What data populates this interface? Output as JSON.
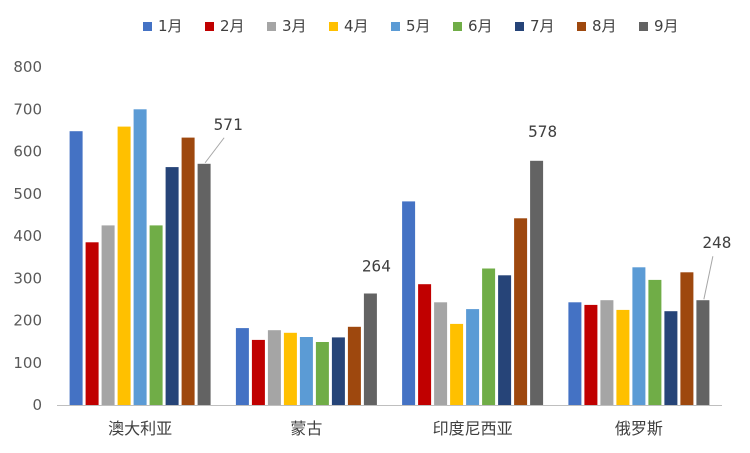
{
  "chart_data": {
    "type": "bar",
    "title": "",
    "xlabel": "",
    "ylabel": "",
    "categories": [
      "澳大利亚",
      "蒙古",
      "印度尼西亚",
      "俄罗斯"
    ],
    "ylim": [
      0,
      800
    ],
    "yticks": [
      0,
      100,
      200,
      300,
      400,
      500,
      600,
      700,
      800
    ],
    "grid": false,
    "legend_position": "top",
    "series": [
      {
        "name": "1月",
        "color": "#4472C4",
        "values": [
          648,
          182,
          482,
          243
        ]
      },
      {
        "name": "2月",
        "color": "#C00000",
        "values": [
          385,
          154,
          286,
          237
        ]
      },
      {
        "name": "3月",
        "color": "#A5A5A5",
        "values": [
          425,
          177,
          243,
          248
        ]
      },
      {
        "name": "4月",
        "color": "#FFC000",
        "values": [
          659,
          171,
          192,
          225
        ]
      },
      {
        "name": "5月",
        "color": "#5B9BD5",
        "values": [
          700,
          161,
          227,
          326
        ]
      },
      {
        "name": "6月",
        "color": "#70AD47",
        "values": [
          425,
          149,
          323,
          296
        ]
      },
      {
        "name": "7月",
        "color": "#264478",
        "values": [
          563,
          160,
          307,
          222
        ]
      },
      {
        "name": "8月",
        "color": "#9E480E",
        "values": [
          633,
          185,
          442,
          314
        ]
      },
      {
        "name": "9月",
        "color": "#636363",
        "values": [
          571,
          264,
          578,
          248
        ]
      }
    ],
    "data_labels": [
      {
        "series": "9月",
        "category": "澳大利亚",
        "text": "571"
      },
      {
        "series": "9月",
        "category": "蒙古",
        "text": "264"
      },
      {
        "series": "9月",
        "category": "印度尼西亚",
        "text": "578"
      },
      {
        "series": "9月",
        "category": "俄罗斯",
        "text": "248"
      }
    ]
  }
}
